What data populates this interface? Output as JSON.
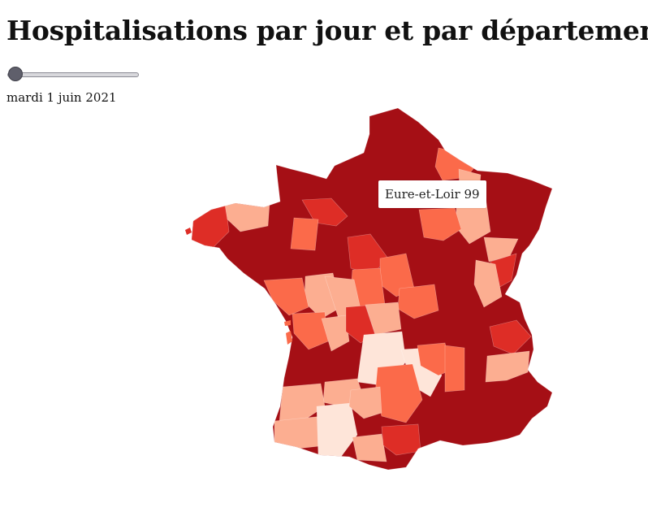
{
  "title": "Hospitalisations par jour et par département",
  "slider": {
    "position": 0
  },
  "date_label": "mardi 1 juin 2021",
  "tooltip": {
    "name": "Eure-et-Loir",
    "value": "99"
  },
  "colors": {
    "very_high": "#a50f15",
    "high": "#de2d26",
    "medium": "#fb6a4a",
    "low": "#fcae91",
    "very_low": "#fee5d9"
  }
}
